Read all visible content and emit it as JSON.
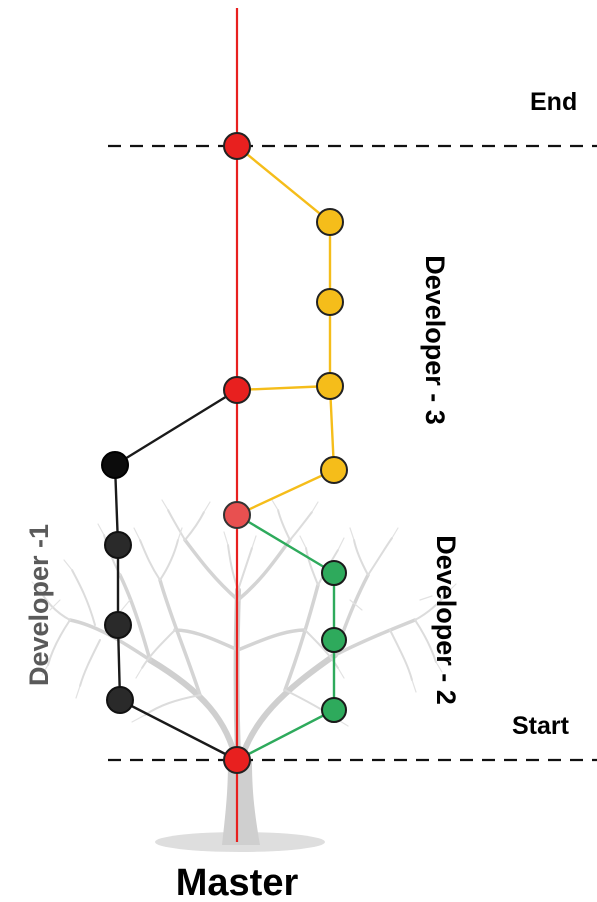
{
  "labels": {
    "end": "End",
    "start": "Start",
    "master": "Master",
    "developer1": "Developer -1",
    "developer2": "Developer - 2",
    "developer3": "Developer - 3"
  },
  "colors": {
    "master": "#e8201f",
    "developer1": "#1a1a1a",
    "developer2": "#2eaa5c",
    "developer3": "#f5bd1a",
    "tree": "#cfcfcf",
    "dashed": "#111111"
  },
  "branches": [
    {
      "name": "developer1",
      "commits": 4
    },
    {
      "name": "developer2",
      "commits": 3
    },
    {
      "name": "developer3",
      "commits": 4
    }
  ]
}
